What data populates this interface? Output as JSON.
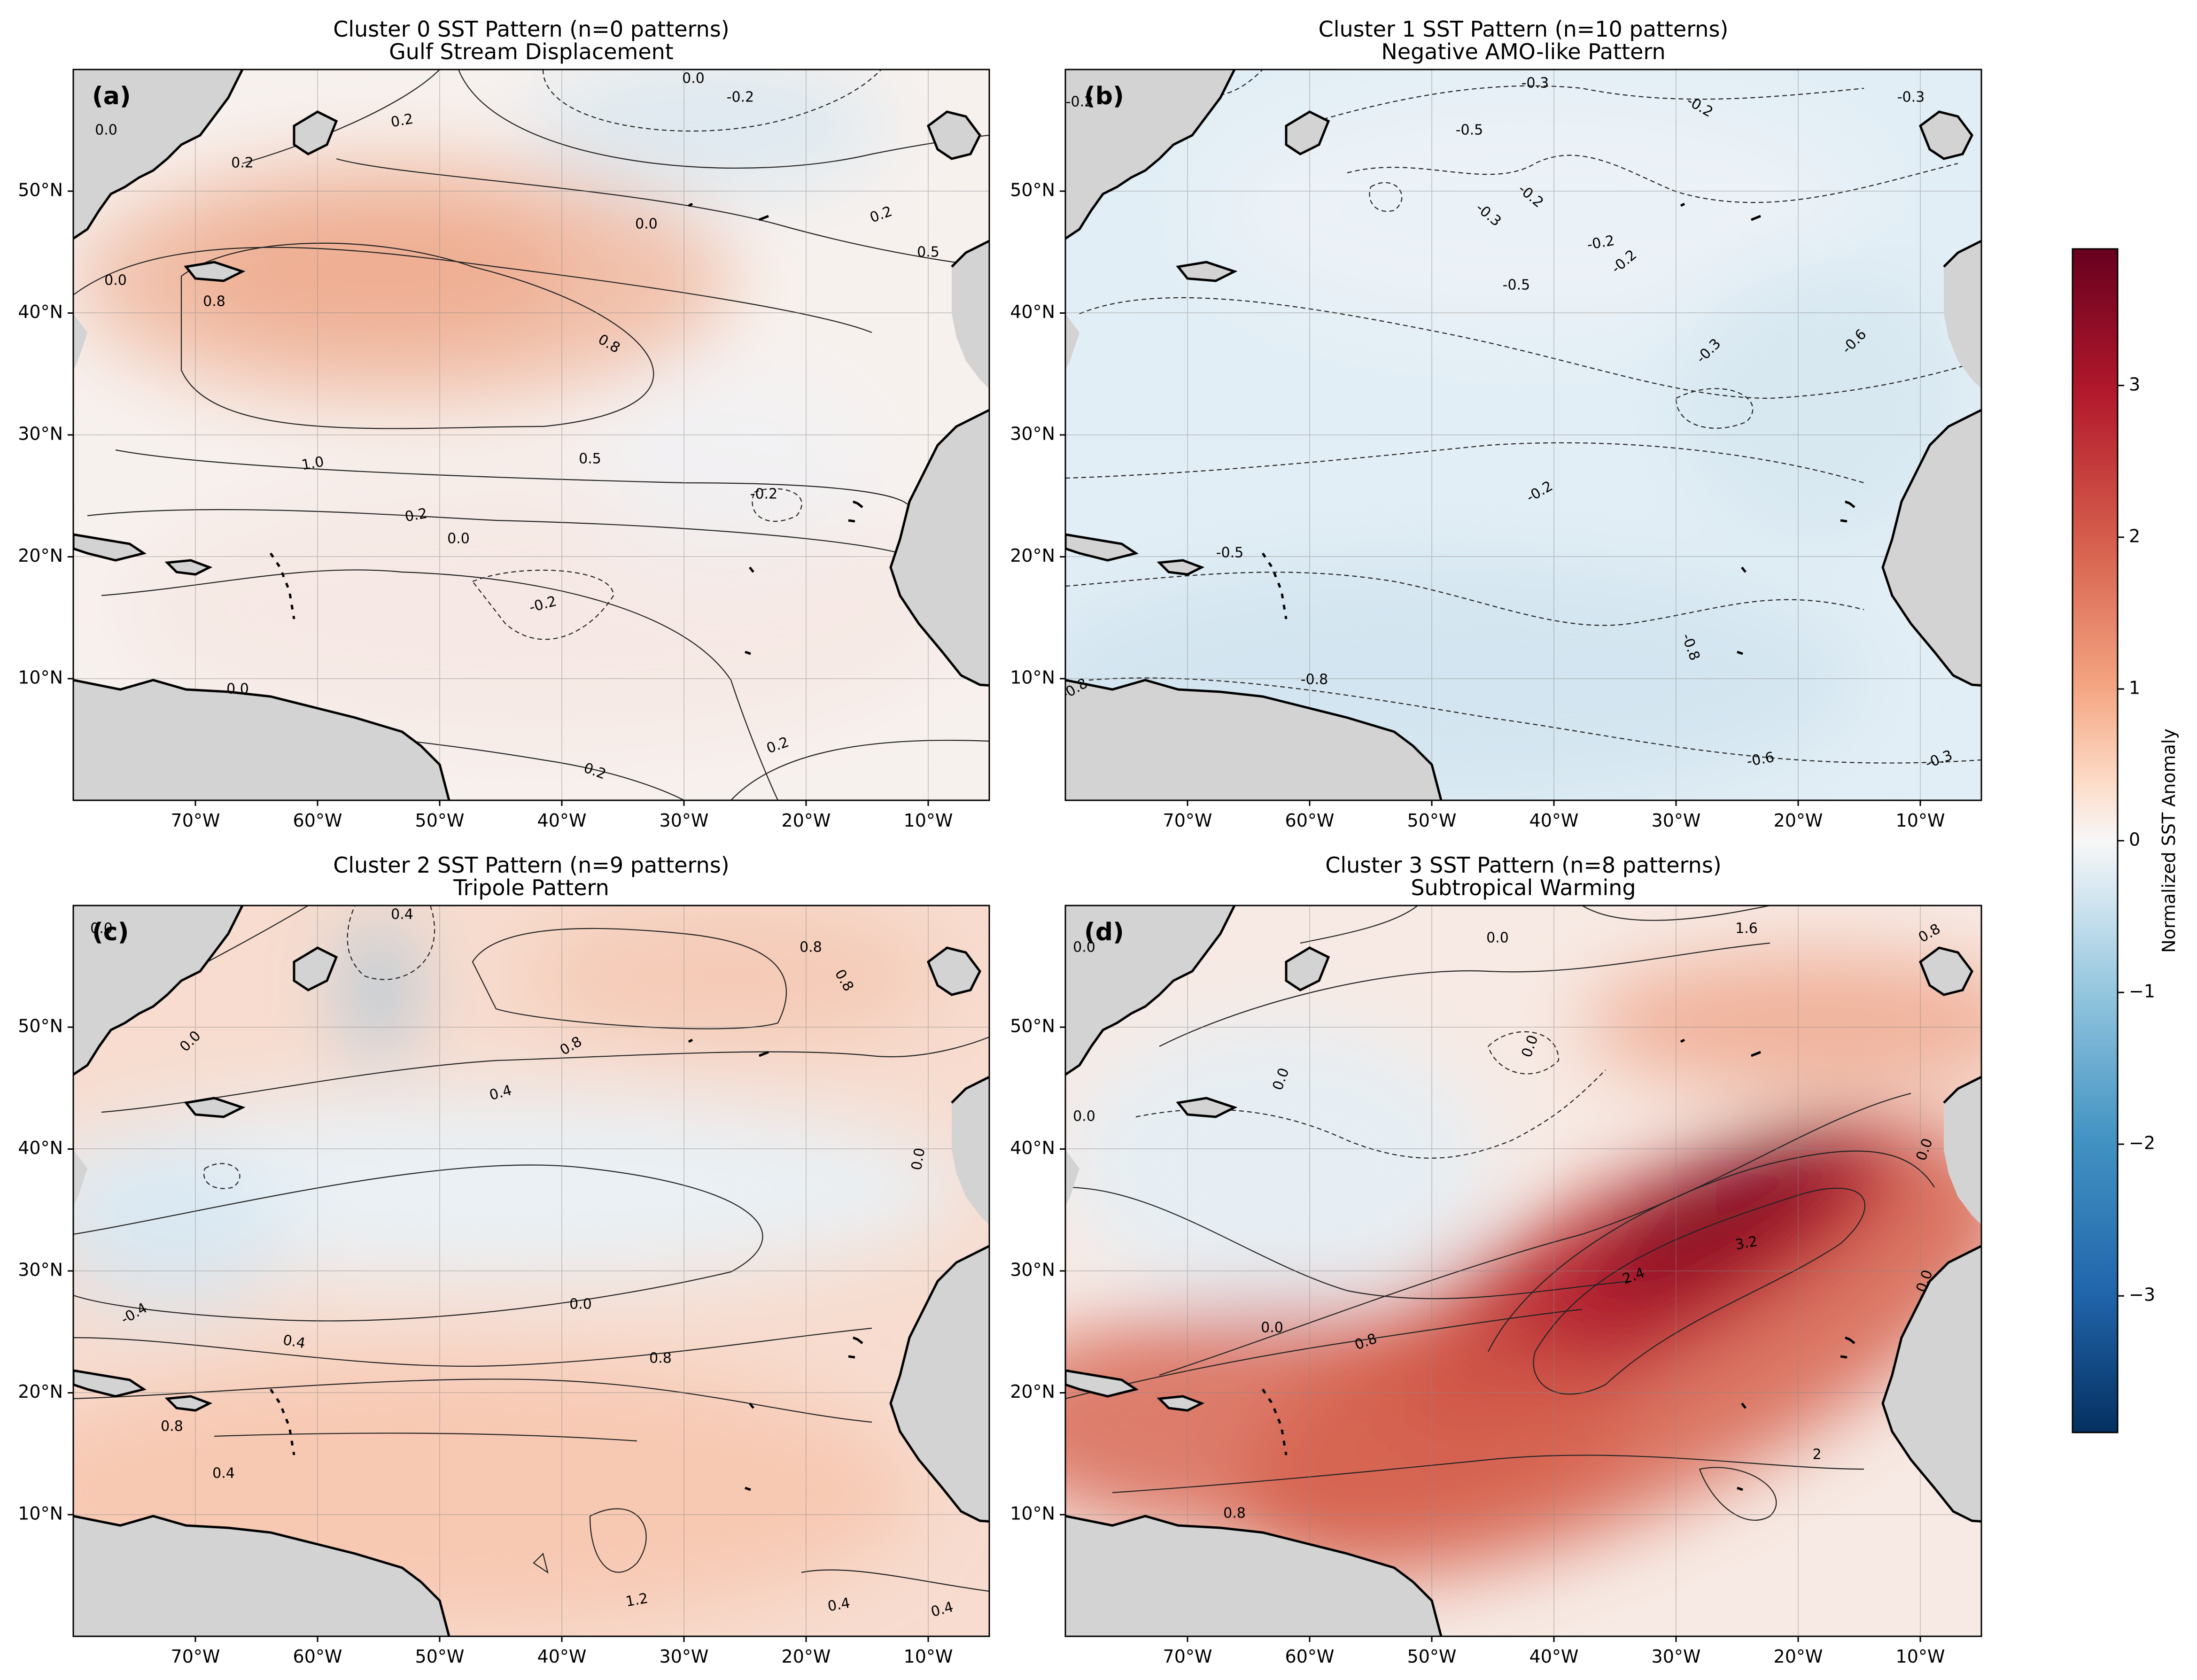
{
  "panels": [
    {
      "title": "Cluster 0 SST Pattern (n=0 patterns)",
      "subtitle": "Gulf Stream Displacement",
      "letter": "(a)",
      "contours": [
        {
          "t": "0.2"
        },
        {
          "t": "0.2"
        },
        {
          "t": "0.0"
        },
        {
          "t": "-0.2"
        },
        {
          "t": "0.0"
        },
        {
          "t": "0.2"
        },
        {
          "t": "0.5"
        },
        {
          "t": "0.0"
        },
        {
          "t": "0.8"
        },
        {
          "t": "0.8"
        },
        {
          "t": "1.0"
        },
        {
          "t": "0.5"
        },
        {
          "t": "0.2"
        },
        {
          "t": "0.0"
        },
        {
          "t": "-0.2"
        },
        {
          "t": "-0.2"
        },
        {
          "t": "0.0"
        },
        {
          "t": "0.2"
        },
        {
          "t": "0.2"
        },
        {
          "t": "0.0"
        }
      ]
    },
    {
      "title": "Cluster 1 SST Pattern (n=10 patterns)",
      "subtitle": "Negative AMO-like Pattern",
      "letter": "(b)",
      "contours": [
        {
          "t": "-0.3"
        },
        {
          "t": "-0.2"
        },
        {
          "t": "-0.3"
        },
        {
          "t": "-0.5"
        },
        {
          "t": "-0.3"
        },
        {
          "t": "-0.2"
        },
        {
          "t": "-0.2"
        },
        {
          "t": "-0.2"
        },
        {
          "t": "-0.5"
        },
        {
          "t": "-0.3"
        },
        {
          "t": "-0.6"
        },
        {
          "t": "-0.2"
        },
        {
          "t": "-0.5"
        },
        {
          "t": "-0.8"
        },
        {
          "t": "-0.8"
        },
        {
          "t": "-0.8"
        },
        {
          "t": "-0.6"
        },
        {
          "t": "-0.3"
        },
        {
          "t": "-0.2"
        }
      ]
    },
    {
      "title": "Cluster 2 SST Pattern (n=9 patterns)",
      "subtitle": "Tripole Pattern",
      "letter": "(c)",
      "contours": [
        {
          "t": "0.4"
        },
        {
          "t": "0.8"
        },
        {
          "t": "0.8"
        },
        {
          "t": "0.0"
        },
        {
          "t": "0.8"
        },
        {
          "t": "0.4"
        },
        {
          "t": "0.0"
        },
        {
          "t": "-0.4"
        },
        {
          "t": "0.0"
        },
        {
          "t": "0.4"
        },
        {
          "t": "0.8"
        },
        {
          "t": "0.8"
        },
        {
          "t": "0.4"
        },
        {
          "t": "1.2"
        },
        {
          "t": "0.4"
        },
        {
          "t": "0.4"
        },
        {
          "t": "0.0"
        }
      ]
    },
    {
      "title": "Cluster 3 SST Pattern (n=8 patterns)",
      "subtitle": "Subtropical Warming",
      "letter": "(d)",
      "contours": [
        {
          "t": "1.6"
        },
        {
          "t": "0.0"
        },
        {
          "t": "0.8"
        },
        {
          "t": "0.0"
        },
        {
          "t": "0.0"
        },
        {
          "t": "0.0"
        },
        {
          "t": "0.0"
        },
        {
          "t": "3.2"
        },
        {
          "t": "2.4"
        },
        {
          "t": "0.0"
        },
        {
          "t": "0.8"
        },
        {
          "t": "0.0"
        },
        {
          "t": "0.8"
        },
        {
          "t": "2"
        },
        {
          "t": "0.0"
        }
      ]
    }
  ],
  "lat_ticks": [
    "10°N",
    "20°N",
    "30°N",
    "40°N",
    "50°N"
  ],
  "lon_ticks": [
    "70°W",
    "60°W",
    "50°W",
    "40°W",
    "30°W",
    "20°W",
    "10°W"
  ],
  "colorbar": {
    "label": "Normalized SST Anomaly",
    "ticks": [
      "3",
      "2",
      "1",
      "0",
      "−1",
      "−2",
      "−3"
    ],
    "colormap": "RdBu_r",
    "range": [
      -3.9,
      3.9
    ]
  },
  "colors": {
    "land": "#d3d3d3",
    "low": "#053061",
    "mid": "#f7f7f7",
    "high": "#67001f",
    "pos": "#f4a582",
    "neg": "#92c5de"
  }
}
